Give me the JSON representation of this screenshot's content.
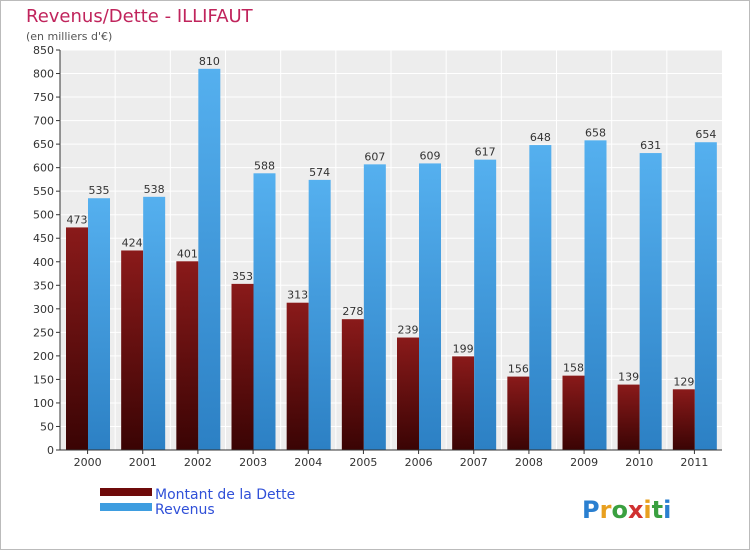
{
  "chart_data": {
    "type": "bar",
    "title": "Revenus/Dette - ILLIFAUT",
    "subtitle": "(en milliers d'€)",
    "categories": [
      "2000",
      "2001",
      "2002",
      "2003",
      "2004",
      "2005",
      "2006",
      "2007",
      "2008",
      "2009",
      "2010",
      "2011"
    ],
    "series": [
      {
        "name": "Montant de la Dette",
        "values": [
          473,
          424,
          401,
          353,
          313,
          278,
          239,
          199,
          156,
          158,
          139,
          129
        ]
      },
      {
        "name": "Revenus",
        "values": [
          535,
          538,
          810,
          588,
          574,
          607,
          609,
          617,
          648,
          658,
          631,
          654
        ]
      }
    ],
    "ylim": [
      0,
      850
    ],
    "yticks": [
      0,
      50,
      100,
      150,
      200,
      250,
      300,
      350,
      400,
      450,
      500,
      550,
      600,
      650,
      700,
      750,
      800,
      850
    ],
    "grid": true,
    "legend_position": "bottom-left",
    "colors": {
      "dette": "#6e0a0a",
      "revenus": "#3e9de0",
      "title": "#c0245c",
      "legend_text": "#3050d8"
    }
  },
  "brand": {
    "text": "Proxiti"
  }
}
